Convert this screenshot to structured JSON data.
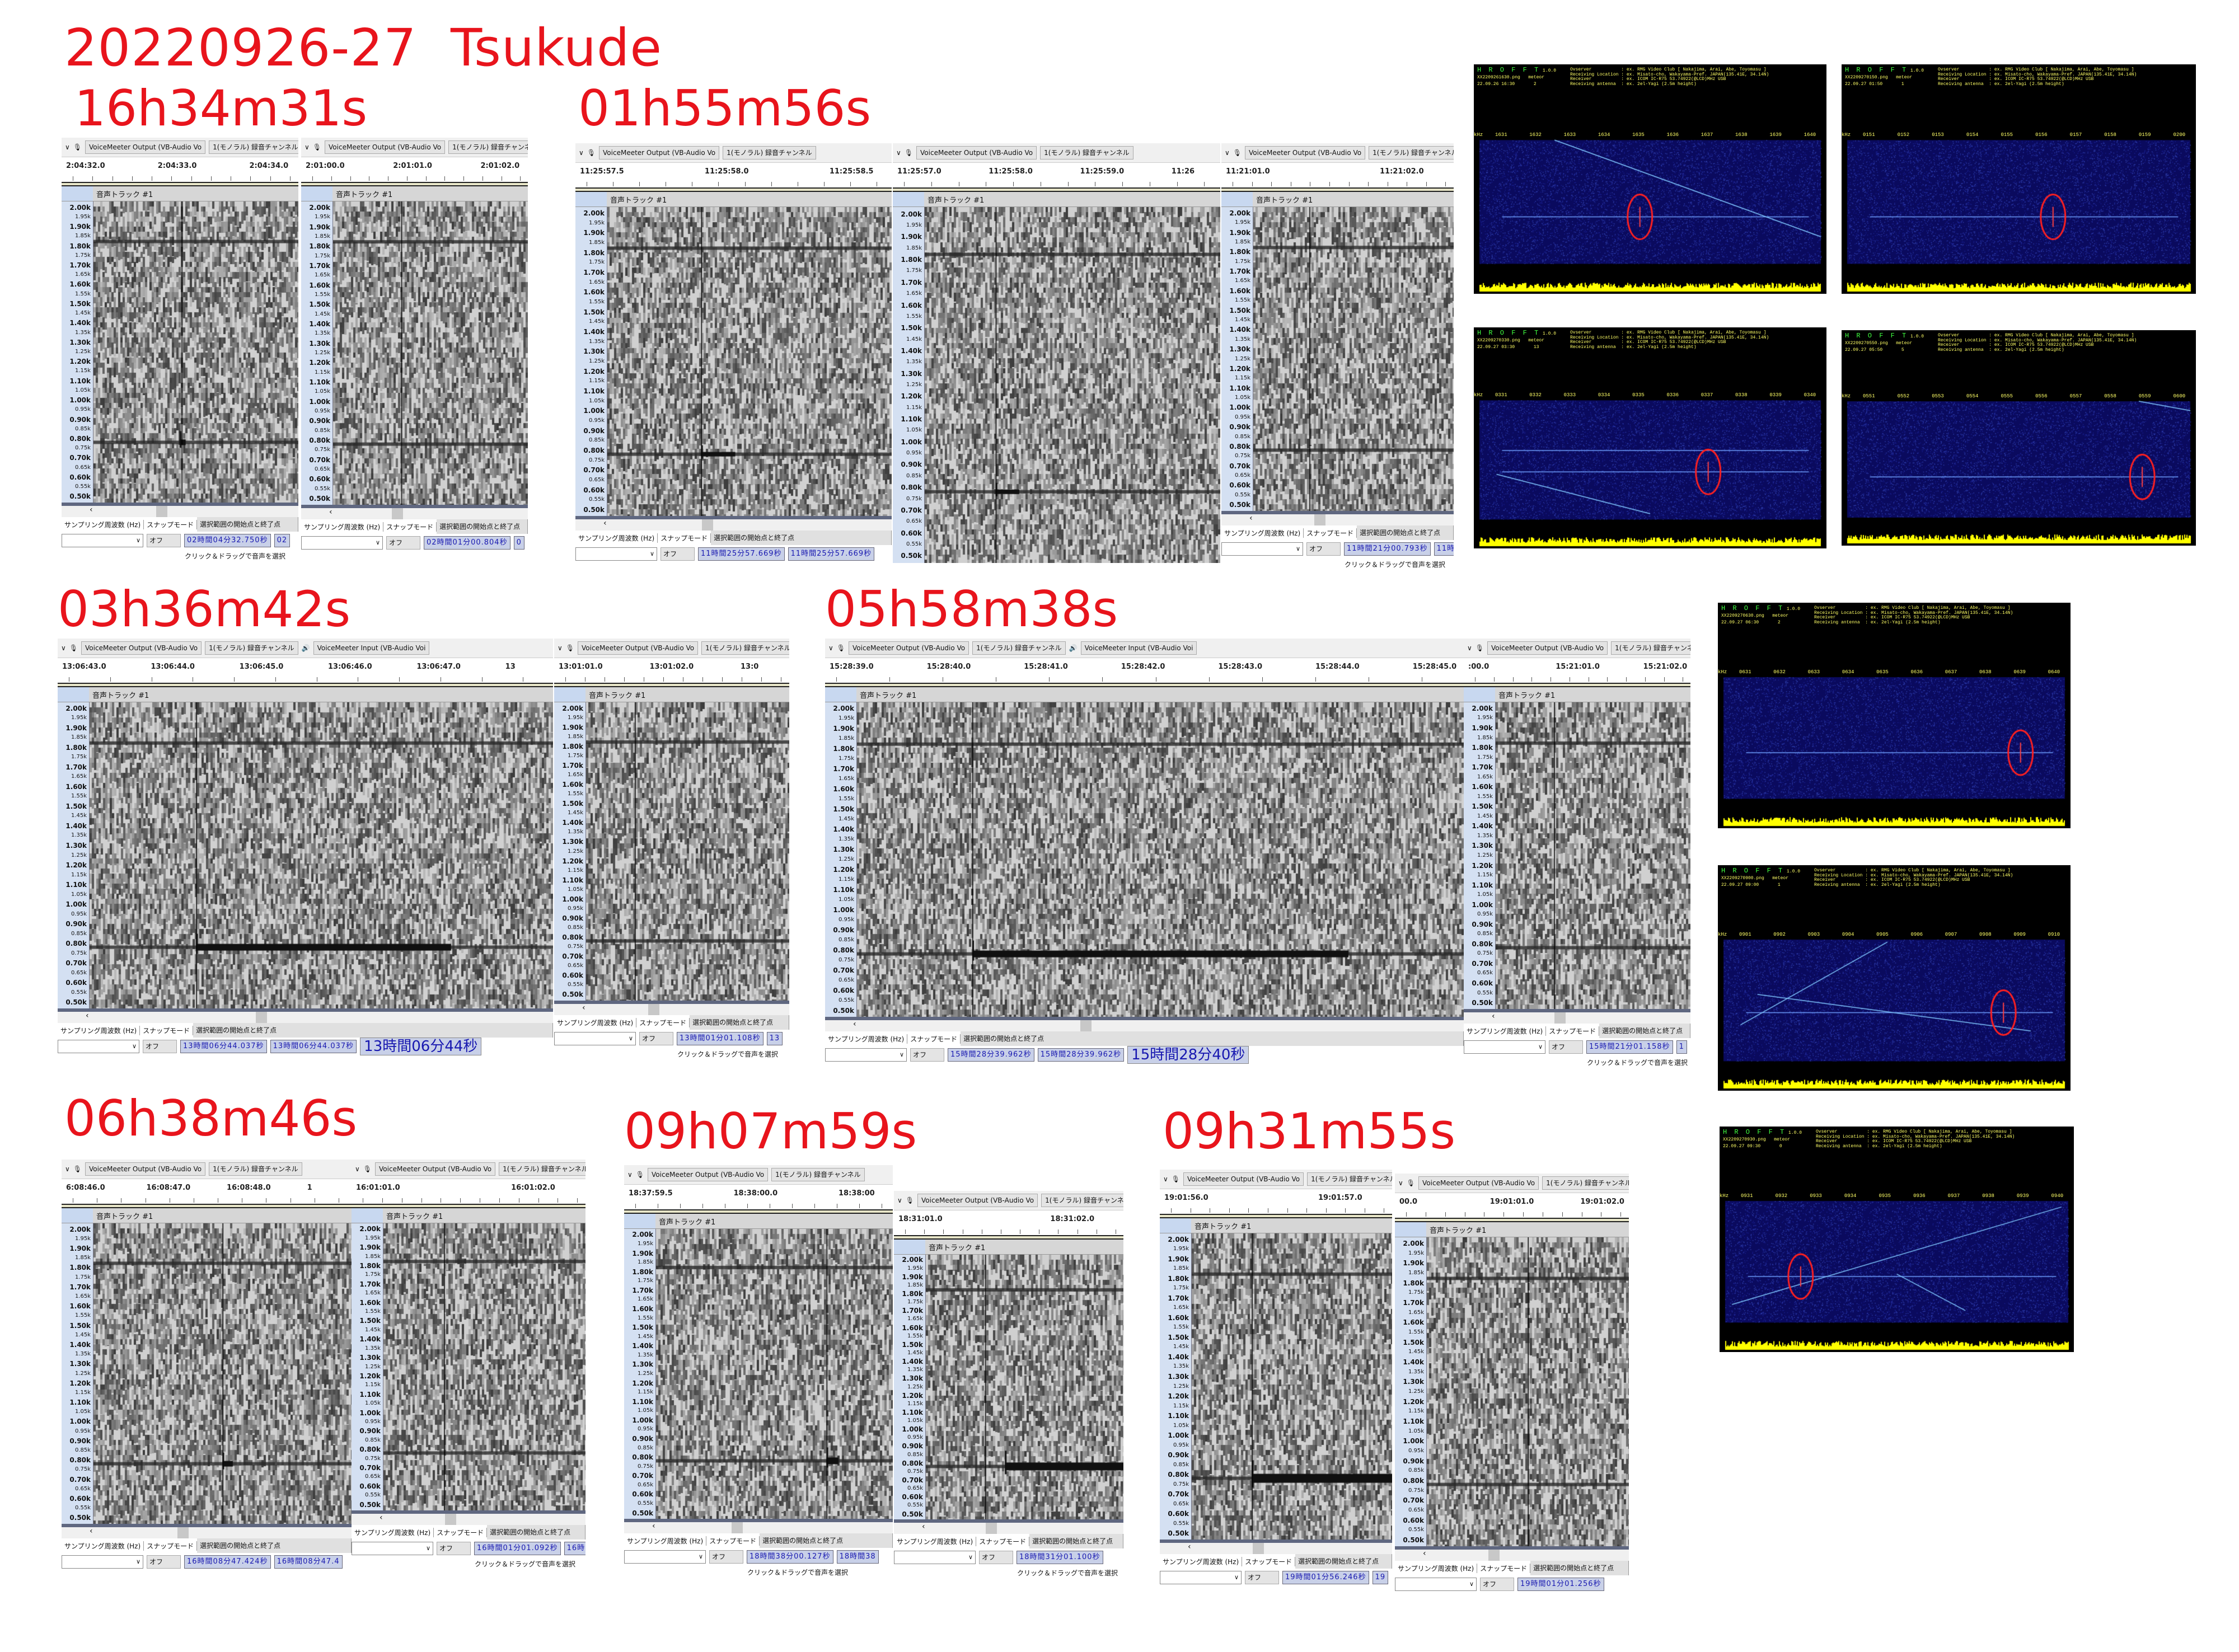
{
  "title": "20220926-27  Tsukude",
  "accent_color": "#e8141c",
  "groups": [
    {
      "label": "16h34m31s"
    },
    {
      "label": "01h55m56s"
    },
    {
      "label": "03h36m42s"
    },
    {
      "label": "05h58m38s"
    },
    {
      "label": "06h38m46s"
    },
    {
      "label": "09h07m59s"
    },
    {
      "label": "09h31m55s"
    }
  ],
  "audacity_common": {
    "device": "VoiceMeeter Output (VB-Audio Vo",
    "channel": "1(モノラル) 録音チャンネル",
    "input_device": "VoiceMeeter Input (VB-Audio Voi",
    "track_name": "音声トラック #1",
    "rate_label": "サンプリング周波数 (Hz)",
    "snap_label": "スナップモード",
    "selection_label": "選択範囲の開始点と終了点",
    "snap_value": "オフ",
    "hint": "クリック＆ドラッグで音声を選択",
    "scroll_left": "‹",
    "freq_labels": [
      "2.00k",
      "1.95k",
      "1.90k",
      "1.85k",
      "1.80k",
      "1.75k",
      "1.70k",
      "1.65k",
      "1.60k",
      "1.55k",
      "1.50k",
      "1.45k",
      "1.40k",
      "1.35k",
      "1.30k",
      "1.25k",
      "1.20k",
      "1.15k",
      "1.10k",
      "1.05k",
      "1.00k",
      "0.95k",
      "0.90k",
      "0.85k",
      "0.80k",
      "0.75k",
      "0.70k",
      "0.65k",
      "0.60k",
      "0.55k",
      "0.50k"
    ]
  },
  "audacity": [
    {
      "group": "16h34m31s",
      "ruler": [
        "2:04:32.0",
        "2:04:33.0",
        "2:04:34.0"
      ],
      "selection": [
        "02時間04分32.750秒",
        "02"
      ],
      "hint": true
    },
    {
      "group": "16h34m31s",
      "ruler": [
        "2:01:00.0",
        "2:01:01.0",
        "2:01:02.0"
      ],
      "selection": [
        "02時間01分00.804秒",
        "0"
      ],
      "hint": false
    },
    {
      "group": "01h55m56s",
      "ruler": [
        "11:25:57.5",
        "11:25:58.0",
        "11:25:58.5"
      ],
      "selection": [
        "11時間25分57.669秒",
        "11時間25分57.669秒"
      ],
      "hint": false
    },
    {
      "group": "01h55m56s",
      "ruler": [
        "11:25:57.0",
        "11:25:58.0",
        "11:25:59.0",
        "11:26"
      ],
      "selection": [],
      "hint": false
    },
    {
      "group": "01h55m56s",
      "ruler": [
        "11:21:01.0",
        "11:21:02.0"
      ],
      "selection": [
        "11時間21分00.793秒",
        "11時"
      ],
      "hint": true
    },
    {
      "group": "03h36m42s",
      "ruler": [
        "13:06:43.0",
        "13:06:44.0",
        "13:06:45.0",
        "13:06:46.0",
        "13:06:47.0",
        "13"
      ],
      "selection": [
        "13時間06分44.037秒",
        "13時間06分44.037秒"
      ],
      "big_time": "13時間06分44秒",
      "input_device": true,
      "hint": false
    },
    {
      "group": "03h36m42s",
      "ruler": [
        "13:01:01.0",
        "13:01:02.0",
        "13:0"
      ],
      "selection": [
        "13時間01分01.108秒",
        "13"
      ],
      "hint": true
    },
    {
      "group": "05h58m38s",
      "ruler": [
        "15:28:39.0",
        "15:28:40.0",
        "15:28:41.0",
        "15:28:42.0",
        "15:28:43.0",
        "15:28:44.0",
        "15:28:45.0"
      ],
      "selection": [
        "15時間28分39.962秒",
        "15時間28分39.962秒"
      ],
      "big_time": "15時間28分40秒",
      "input_device": true,
      "hint": false
    },
    {
      "group": "05h58m38s",
      "ruler": [
        ":00.0",
        "15:21:01.0",
        "15:21:02.0"
      ],
      "selection": [
        "15時間21分01.158秒",
        "1"
      ],
      "hint": true
    },
    {
      "group": "06h38m46s",
      "ruler": [
        "6:08:46.0",
        "16:08:47.0",
        "16:08:48.0",
        "1"
      ],
      "selection": [
        "16時間08分47.424秒",
        "16時間08分47.4"
      ],
      "hint": false
    },
    {
      "group": "06h38m46s",
      "ruler": [
        "16:01:01.0",
        "16:01:02.0"
      ],
      "selection": [
        "16時間01分01.092秒",
        "16時"
      ],
      "hint": true
    },
    {
      "group": "09h07m59s",
      "ruler": [
        "18:37:59.5",
        "18:38:00.0",
        "18:38:00"
      ],
      "selection": [
        "18時間38分00.127秒",
        "18時間38"
      ],
      "hint": true
    },
    {
      "group": "09h07m59s",
      "ruler": [
        "18:31:01.0",
        "18:31:02.0"
      ],
      "selection": [
        "18時間31分01.100秒"
      ],
      "hint": true
    },
    {
      "group": "09h31m55s",
      "ruler": [
        "19:01:56.0",
        "19:01:57.0"
      ],
      "selection": [
        "19時間01分56.246秒",
        "19"
      ],
      "hint": false
    },
    {
      "group": "09h31m55s",
      "ruler": [
        "00.0",
        "19:01:01.0",
        "19:01:02.0"
      ],
      "selection": [
        "19時間01分01.256秒"
      ],
      "hint": false
    }
  ],
  "hrofft_common": {
    "name": "H R O F F T",
    "version": "1.0.0",
    "meteor_label": "meteor",
    "khz_label": "kHz",
    "info": [
      "Ovserver           : ex. RMG Video Club [ Nakajima, Arai, Abe, Toyomasu ]",
      "Receiving Location : ex. Misato-cho, Wakayama-Pref. JAPAN(135.41E, 34.14N)",
      "Receiver           : ex. ICOM IC-R75 53.74922(@LCD)MHz USB",
      "Receiving antenna  : ex. 2el-Yagi (2.5m height)"
    ],
    "colors": {
      "background": "#000000",
      "plot": "#0a0a6e",
      "text": "#ffff66",
      "name": "#40ff40",
      "marker": "#ff2020",
      "level": "#ffff00"
    }
  },
  "hrofft": [
    {
      "file": "XX2209261630.png",
      "date": "22.09.26 16:30",
      "meteor": "2",
      "ticks": [
        "1631",
        "1632",
        "1633",
        "1634",
        "1635",
        "1636",
        "1637",
        "1638",
        "1639",
        "1640"
      ]
    },
    {
      "file": "XX2209270150.png",
      "date": "22.09.27 01:50",
      "meteor": "1",
      "ticks": [
        "0151",
        "0152",
        "0153",
        "0154",
        "0155",
        "0156",
        "0157",
        "0158",
        "0159",
        "0200"
      ]
    },
    {
      "file": "XX2209270330.png",
      "date": "22.09.27 03:30",
      "meteor": "13",
      "ticks": [
        "0331",
        "0332",
        "0333",
        "0334",
        "0335",
        "0336",
        "0337",
        "0338",
        "0339",
        "0340"
      ]
    },
    {
      "file": "XX2209270550.png",
      "date": "22.09.27 05:50",
      "meteor": "5",
      "ticks": [
        "0551",
        "0552",
        "0553",
        "0554",
        "0555",
        "0556",
        "0557",
        "0558",
        "0559",
        "0600"
      ]
    },
    {
      "file": "XX2209270630.png",
      "date": "22.09.27 06:30",
      "meteor": "2",
      "ticks": [
        "0631",
        "0632",
        "0633",
        "0634",
        "0635",
        "0636",
        "0637",
        "0638",
        "0639",
        "0640"
      ]
    },
    {
      "file": "XX2209270900.png",
      "date": "22.09.27 09:00",
      "meteor": "1",
      "ticks": [
        "0901",
        "0902",
        "0903",
        "0904",
        "0905",
        "0906",
        "0907",
        "0908",
        "0909",
        "0910"
      ]
    },
    {
      "file": "XX2209270930.png",
      "date": "22.09.27 09:30",
      "meteor": "0",
      "ticks": [
        "0931",
        "0932",
        "0933",
        "0934",
        "0935",
        "0936",
        "0937",
        "0938",
        "0939",
        "0940"
      ]
    }
  ]
}
